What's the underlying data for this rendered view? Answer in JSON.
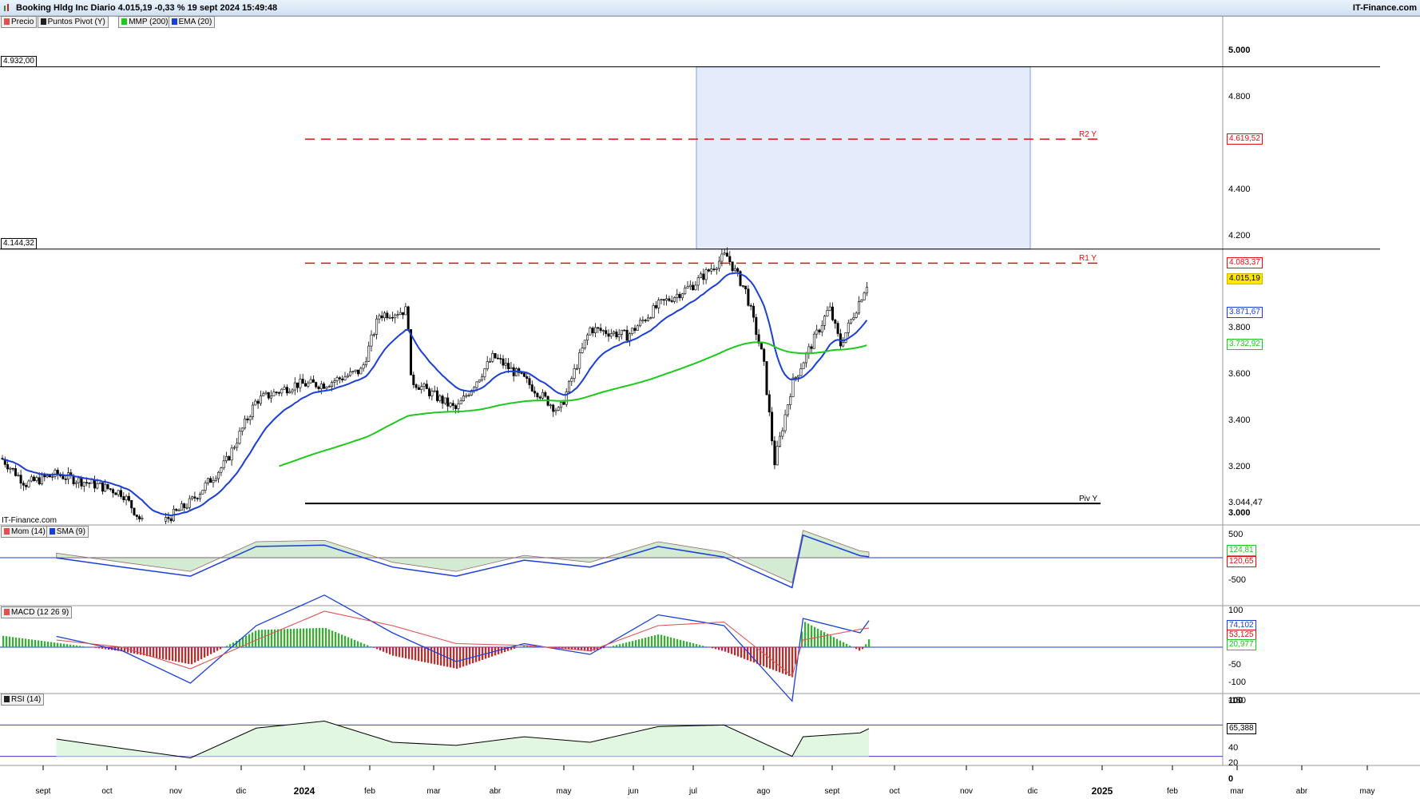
{
  "header": {
    "title": "Booking Hldg Inc Diario 4.015,19 -0,33 % 19 sept 2024 15:49:48",
    "brand": "IT-Finance.com",
    "watermark": "IT-Finance.com"
  },
  "legend": {
    "main": [
      {
        "label": "Precio",
        "color": "#e05050"
      },
      {
        "label": "Puntos Pivot (Y)",
        "color": "#202020"
      },
      {
        "label": "MMP (200)",
        "color": "#1ec81e"
      },
      {
        "label": "EMA (20)",
        "color": "#1a3fd8"
      }
    ],
    "mom": [
      {
        "label": "Mom (14)",
        "color": "#e05050"
      },
      {
        "label": "SMA (9)",
        "color": "#1a3fd8"
      }
    ],
    "macd": [
      {
        "label": "MACD (12 26 9)",
        "color": "#e05050"
      }
    ],
    "rsi": [
      {
        "label": "RSI (14)",
        "color": "#202020"
      }
    ]
  },
  "levels": {
    "upper_value": "4.932,00",
    "lower_value": "4.144,32",
    "r2_label": "R2 Y",
    "r1_label": "R1 Y",
    "piv_label": "Piv Y"
  },
  "price_axis": {
    "ticks": [
      "5.000",
      "4.800",
      "4.400",
      "4.200",
      "3.800",
      "3.600",
      "3.400",
      "3.200",
      "3.000"
    ],
    "badges": {
      "r2": "4.619,52",
      "r1": "4.083,37",
      "last": "4.015,19",
      "ema": "3.871,67",
      "sma200": "3.732,92",
      "piv": "3.044,47"
    }
  },
  "mom_axis": {
    "ticks": [
      "500",
      "-500"
    ],
    "badges": {
      "mom": "124,81",
      "sma": "120,65"
    }
  },
  "macd_axis": {
    "ticks": [
      "100",
      "-50",
      "-100",
      "-150"
    ],
    "badges": {
      "macd": "74,102",
      "signal": "53,125",
      "hist": "20,977"
    }
  },
  "rsi_axis": {
    "ticks": [
      "100",
      "60",
      "40",
      "20",
      "0"
    ],
    "badges": {
      "rsi": "65,388"
    }
  },
  "x_axis": {
    "labels": [
      {
        "text": "sept",
        "bold": false
      },
      {
        "text": "oct",
        "bold": false
      },
      {
        "text": "nov",
        "bold": false
      },
      {
        "text": "dic",
        "bold": false
      },
      {
        "text": "2024",
        "bold": true
      },
      {
        "text": "feb",
        "bold": false
      },
      {
        "text": "mar",
        "bold": false
      },
      {
        "text": "abr",
        "bold": false
      },
      {
        "text": "may",
        "bold": false
      },
      {
        "text": "jun",
        "bold": false
      },
      {
        "text": "jul",
        "bold": false
      },
      {
        "text": "ago",
        "bold": false
      },
      {
        "text": "sept",
        "bold": false
      },
      {
        "text": "oct",
        "bold": false
      },
      {
        "text": "nov",
        "bold": false
      },
      {
        "text": "dic",
        "bold": false
      },
      {
        "text": "2025",
        "bold": true
      },
      {
        "text": "feb",
        "bold": false
      },
      {
        "text": "mar",
        "bold": false
      },
      {
        "text": "abr",
        "bold": false
      },
      {
        "text": "may",
        "bold": false
      }
    ]
  },
  "colors": {
    "ema": "#1a3fd8",
    "sma200": "#1ec81e",
    "pivot_resistance": "#e01010",
    "ema_orange": "#ff6a00",
    "target_zone": "#e4ecfc"
  },
  "chart_data": [
    {
      "type": "line",
      "name": "price",
      "x": [
        "2023-08-21",
        "2023-09-01",
        "2023-09-15",
        "2023-10-01",
        "2023-10-15",
        "2023-10-27",
        "2023-11-15",
        "2023-12-01",
        "2023-12-15",
        "2024-01-02",
        "2024-01-15",
        "2024-02-01",
        "2024-02-09",
        "2024-02-22",
        "2024-02-23",
        "2024-03-15",
        "2024-04-01",
        "2024-04-15",
        "2024-05-01",
        "2024-05-15",
        "2024-06-01",
        "2024-06-15",
        "2024-07-01",
        "2024-07-16",
        "2024-07-25",
        "2024-08-02",
        "2024-08-07",
        "2024-08-15",
        "2024-09-01",
        "2024-09-06",
        "2024-09-19"
      ],
      "close": [
        3240,
        3130,
        3170,
        3130,
        3090,
        2920,
        3050,
        3220,
        3490,
        3560,
        3560,
        3620,
        3860,
        3880,
        3580,
        3450,
        3680,
        3580,
        3440,
        3800,
        3770,
        3900,
        3990,
        4120,
        3960,
        3660,
        3220,
        3560,
        3890,
        3730,
        4015
      ],
      "ylim": [
        2970,
        5150
      ],
      "overlays": {
        "ema20_last": 3871.67,
        "sma200_last": 3732.92
      },
      "levels": {
        "r2": 4619.52,
        "r1": 4083.37,
        "piv": 3044.47,
        "zone_top": 4932.0,
        "zone_bottom": 4144.32
      }
    },
    {
      "type": "area",
      "name": "Mom (14)",
      "x": [
        "2023-09",
        "2023-10",
        "2023-11",
        "2023-12",
        "2024-01",
        "2024-02",
        "2024-03",
        "2024-04",
        "2024-05",
        "2024-06",
        "2024-07",
        "2024-08",
        "2024-08-20",
        "2024-09",
        "2024-09-19"
      ],
      "values": [
        100,
        -100,
        -300,
        350,
        380,
        -100,
        -300,
        50,
        -100,
        350,
        120,
        -550,
        600,
        150,
        124.81
      ],
      "sma_last": 120.65,
      "ylim": [
        -900,
        800
      ]
    },
    {
      "type": "bar",
      "name": "MACD (12 26 9)",
      "x": [
        "2023-09",
        "2023-10",
        "2023-11",
        "2023-12",
        "2024-01",
        "2024-02",
        "2024-03",
        "2024-04",
        "2024-05",
        "2024-06",
        "2024-07",
        "2024-08",
        "2024-08-20",
        "2024-09",
        "2024-09-19"
      ],
      "macd": [
        30,
        -10,
        -100,
        60,
        145,
        40,
        -40,
        10,
        -20,
        90,
        60,
        -150,
        80,
        40,
        74.102
      ],
      "signal": [
        20,
        0,
        -60,
        20,
        100,
        60,
        10,
        5,
        -10,
        60,
        70,
        -80,
        20,
        50,
        53.125
      ],
      "hist_last": 20.977,
      "ylim": [
        -170,
        130
      ]
    },
    {
      "type": "line",
      "name": "RSI (14)",
      "x": [
        "2023-09",
        "2023-10",
        "2023-11",
        "2023-12",
        "2024-01",
        "2024-02",
        "2024-03",
        "2024-04",
        "2024-05",
        "2024-06",
        "2024-07",
        "2024-08",
        "2024-08-20",
        "2024-09",
        "2024-09-19"
      ],
      "values": [
        52,
        40,
        28,
        66,
        75,
        48,
        44,
        55,
        48,
        68,
        70,
        30,
        55,
        60,
        65.388
      ],
      "ylim": [
        0,
        100
      ],
      "levels": [
        70,
        30
      ]
    }
  ]
}
